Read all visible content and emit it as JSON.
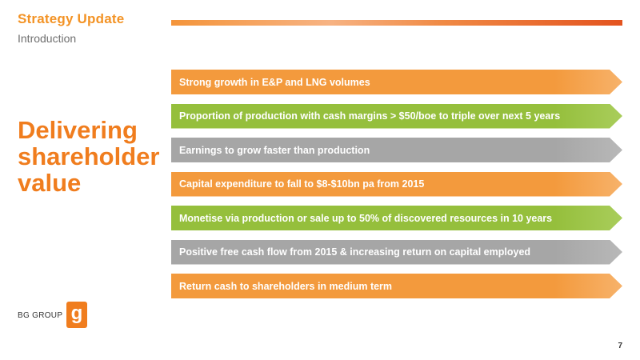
{
  "header": {
    "title": "Strategy Update",
    "subtitle": "Introduction",
    "accent_color": "#f39325"
  },
  "headline": {
    "line1": "Delivering",
    "line2": "shareholder",
    "line3": "value",
    "color": "#f07d1e"
  },
  "bullets": [
    {
      "text": "Strong growth in E&P and LNG volumes",
      "color": "orange"
    },
    {
      "text": "Proportion of production with cash margins > $50/boe to triple over next 5 years",
      "color": "green"
    },
    {
      "text": "Earnings to grow faster than production",
      "color": "grey"
    },
    {
      "text": "Capital expenditure to fall to $8-$10bn pa from 2015",
      "color": "orange"
    },
    {
      "text": "Monetise via production or sale up to 50% of discovered resources in 10 years",
      "color": "green"
    },
    {
      "text": "Positive free cash flow from 2015 & increasing return on capital employed",
      "color": "grey"
    },
    {
      "text": "Return cash to shareholders in medium term",
      "color": "orange"
    }
  ],
  "logo": {
    "text": "BG GROUP",
    "mark": "g"
  },
  "footer": {
    "page_number": "7"
  }
}
